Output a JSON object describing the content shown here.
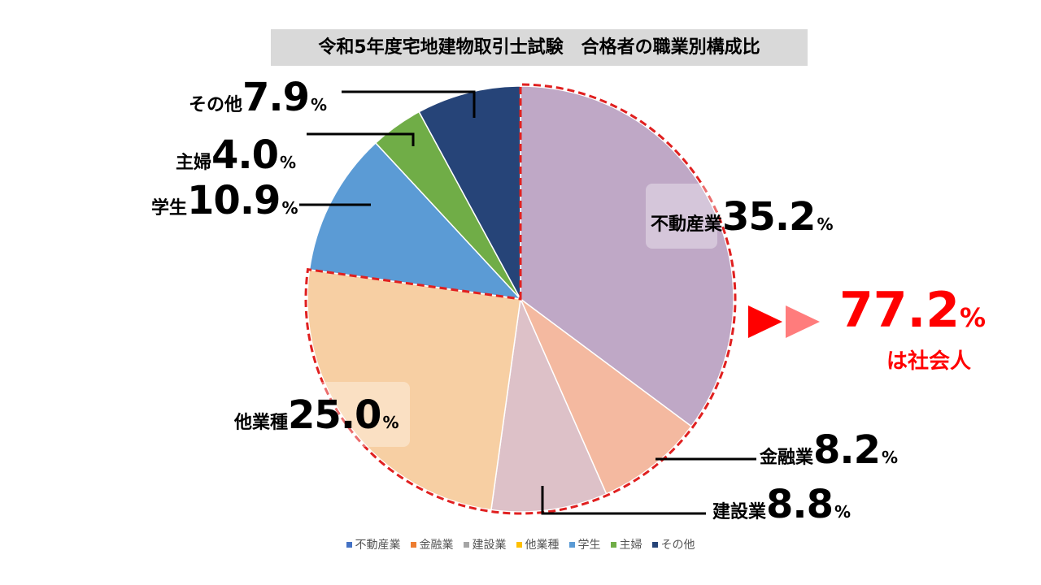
{
  "chart_data": {
    "type": "pie",
    "title": "令和5年度宅地建物取引士試験　合格者の職業別構成比",
    "slices": [
      {
        "name": "不動産業",
        "value": 35.2,
        "value_label": "35.2",
        "color": "#bfa8c6",
        "highlight": true
      },
      {
        "name": "金融業",
        "value": 8.2,
        "value_label": "8.2",
        "color": "#f4b9a0",
        "highlight": true
      },
      {
        "name": "建設業",
        "value": 8.8,
        "value_label": "8.8",
        "color": "#ddc1c8",
        "highlight": true
      },
      {
        "name": "他業種",
        "value": 25.0,
        "value_label": "25.0",
        "color": "#f7cfa3",
        "highlight": true
      },
      {
        "name": "学生",
        "value": 10.9,
        "value_label": "10.9",
        "color": "#5b9bd5",
        "highlight": false
      },
      {
        "name": "主婦",
        "value": 4.0,
        "value_label": "4.0",
        "color": "#70ad47",
        "highlight": false
      },
      {
        "name": "その他",
        "value": 7.9,
        "value_label": "7.9",
        "color": "#264478",
        "highlight": false
      }
    ],
    "percent_sign": "%",
    "legend": [
      {
        "name": "不動産業",
        "color": "#4472c4"
      },
      {
        "name": "金融業",
        "color": "#ed7d31"
      },
      {
        "name": "建設業",
        "color": "#a5a5a5"
      },
      {
        "name": "他業種",
        "color": "#ffc000"
      },
      {
        "name": "学生",
        "color": "#5b9bd5"
      },
      {
        "name": "主婦",
        "color": "#70ad47"
      },
      {
        "name": "その他",
        "color": "#264478"
      }
    ],
    "legend_position": "bottom",
    "summary": {
      "value": "77.2",
      "unit": "%",
      "text": "は社会人",
      "color": "#ff0000"
    },
    "highlight_border_color": "#e02020"
  }
}
